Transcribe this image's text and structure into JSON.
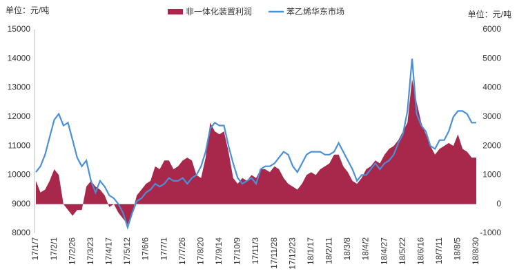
{
  "chart_data": {
    "type": "line",
    "y_unit": "单位：元/吨",
    "y2_unit": "单位：元/吨",
    "categories": [
      "17/1/7",
      null,
      null,
      null,
      "17/2/1",
      null,
      null,
      null,
      "17/2/26",
      null,
      null,
      null,
      "17/3/23",
      null,
      null,
      null,
      "17/4/17",
      null,
      null,
      null,
      "17/5/12",
      null,
      null,
      null,
      "17/6/6",
      null,
      null,
      null,
      "17/7/1",
      null,
      null,
      null,
      "17/7/26",
      null,
      null,
      null,
      "17/8/20",
      null,
      null,
      null,
      "17/9/14",
      null,
      null,
      null,
      "17/10/9",
      null,
      null,
      null,
      "17/11/3",
      null,
      null,
      null,
      "17/11/28",
      null,
      null,
      null,
      "17/12/23",
      null,
      null,
      null,
      "18/1/17",
      null,
      null,
      null,
      "18/2/11",
      null,
      null,
      null,
      "18/3/8",
      null,
      null,
      null,
      "18/4/2",
      null,
      null,
      null,
      "18/4/27",
      null,
      null,
      null,
      "18/5/22",
      null,
      null,
      null,
      "18/6/16",
      null,
      null,
      null,
      "18/7/11",
      null,
      null,
      null,
      "18/8/5",
      null,
      null,
      null,
      "18/8/30"
    ],
    "series": [
      {
        "name": "非一体化装置利润",
        "kind": "area",
        "axis": "y2",
        "color": "#a8284b",
        "values": [
          800,
          400,
          500,
          800,
          1200,
          1000,
          0,
          -200,
          -400,
          -200,
          -200,
          600,
          800,
          600,
          500,
          300,
          -100,
          0,
          -300,
          -500,
          -700,
          -300,
          300,
          500,
          700,
          800,
          1300,
          1200,
          1500,
          1500,
          1200,
          1300,
          1500,
          1600,
          1500,
          1000,
          900,
          1600,
          2800,
          2500,
          2400,
          2500,
          1800,
          900,
          700,
          900,
          800,
          1000,
          900,
          1200,
          1200,
          1100,
          1300,
          1200,
          900,
          700,
          600,
          500,
          700,
          1000,
          1100,
          1000,
          1200,
          1300,
          1400,
          1700,
          1700,
          1300,
          1100,
          800,
          700,
          900,
          1200,
          1300,
          1500,
          1400,
          1700,
          1900,
          2000,
          2200,
          2500,
          2800,
          4300,
          3500,
          2800,
          2400,
          2000,
          1700,
          1900,
          2000,
          2100,
          2000,
          2400,
          1900,
          1800,
          1600,
          1600
        ]
      },
      {
        "name": "苯乙烯华东市场",
        "kind": "line",
        "color": "#4a8fd8",
        "values": [
          10100,
          10300,
          10700,
          11300,
          11900,
          12100,
          11700,
          11800,
          11200,
          10600,
          10300,
          10500,
          9800,
          9400,
          9800,
          9600,
          9300,
          9200,
          9000,
          8700,
          8200,
          8700,
          9100,
          9200,
          9400,
          9500,
          9700,
          9600,
          9700,
          9900,
          9800,
          9800,
          9900,
          9700,
          9900,
          10000,
          10300,
          10800,
          11600,
          11800,
          11700,
          11700,
          11000,
          10400,
          9900,
          9700,
          9800,
          9900,
          9700,
          10200,
          10300,
          10300,
          10400,
          10600,
          10800,
          10700,
          10300,
          10100,
          10400,
          10700,
          10800,
          10800,
          10800,
          10700,
          10700,
          10800,
          11100,
          10800,
          10500,
          10200,
          9800,
          10000,
          10000,
          10200,
          10400,
          10200,
          10400,
          10500,
          10700,
          11100,
          11400,
          12200,
          14000,
          12100,
          11700,
          11500,
          11000,
          10900,
          11200,
          11200,
          11500,
          12000,
          12200,
          12200,
          12100,
          11800,
          11800
        ]
      }
    ],
    "ylim": [
      8000,
      15000
    ],
    "yticks": [
      8000,
      9000,
      10000,
      11000,
      12000,
      13000,
      14000,
      15000
    ],
    "y2lim": [
      -1000,
      6000
    ],
    "y2ticks": [
      -1000,
      0,
      1000,
      2000,
      3000,
      4000,
      5000,
      6000
    ],
    "legend": "top"
  }
}
